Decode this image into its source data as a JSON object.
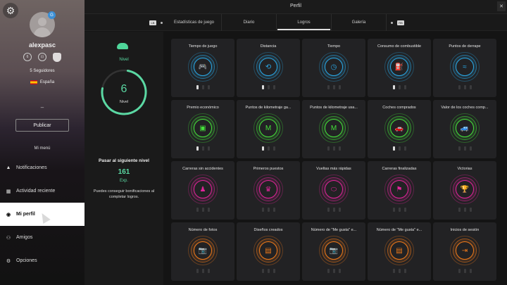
{
  "header": {
    "title": "Perfil",
    "close_label": "✕"
  },
  "tabs": {
    "left_icon": "LB",
    "right_icon": "RB",
    "items": [
      {
        "label": "Estadísticas de juego"
      },
      {
        "label": "Diario"
      },
      {
        "label": "Logros",
        "active": true
      },
      {
        "label": "Galería"
      }
    ]
  },
  "profile": {
    "username": "alexpasc",
    "badge": "G",
    "followers": "5 Seguidores",
    "country": "España",
    "dash": "–",
    "publish_label": "Publicar",
    "menu_title": "Mi menú",
    "mini_icons": [
      "6",
      "⊡",
      ""
    ]
  },
  "nav": {
    "items": [
      {
        "label": "Notificaciones",
        "icon": "bell-icon",
        "glyph": "🔔"
      },
      {
        "label": "Actividad reciente",
        "icon": "activity-icon",
        "glyph": "▦"
      },
      {
        "label": "Mi perfil",
        "icon": "profile-icon",
        "glyph": "◉",
        "active": true
      },
      {
        "label": "Amigos",
        "icon": "friends-icon",
        "glyph": "👥"
      },
      {
        "label": "Opciones",
        "icon": "options-icon",
        "glyph": "⚙"
      }
    ]
  },
  "level": {
    "top_label": "Nivel",
    "value": "6",
    "ring_label": "Nivel",
    "progress_pct": 75,
    "next_level_label": "Pasar al siguiente nivel",
    "exp_value": "161",
    "exp_label": "Exp.",
    "hint": "Puedes conseguir bonificaciones al completar logros.",
    "accent": "#5bd8a3"
  },
  "achievements": [
    {
      "title": "Tiempo de juego",
      "icon": "gamepad-icon",
      "glyph": "🎮",
      "color": "#2aa8e6",
      "stars": 1
    },
    {
      "title": "Distancia",
      "icon": "route-icon",
      "glyph": "⟲",
      "color": "#2aa8e6",
      "stars": 1
    },
    {
      "title": "Tiempo",
      "icon": "clock-road-icon",
      "glyph": "◷",
      "color": "#2aa8e6",
      "stars": 0
    },
    {
      "title": "Consumo de combustible",
      "icon": "fuel-icon",
      "glyph": "⛽",
      "color": "#2aa8e6",
      "stars": 1
    },
    {
      "title": "Puntos de derrape",
      "icon": "drift-icon",
      "glyph": "≈",
      "color": "#2aa8e6",
      "stars": 0
    },
    {
      "title": "Premio económico",
      "icon": "money-icon",
      "glyph": "▣",
      "color": "#45e03a",
      "stars": 1
    },
    {
      "title": "Puntos de kilometraje ga...",
      "icon": "mileage-icon",
      "glyph": "M",
      "color": "#45e03a",
      "stars": 1
    },
    {
      "title": "Puntos de kilometraje usa...",
      "icon": "mileage-used-icon",
      "glyph": "M",
      "color": "#45e03a",
      "stars": 0
    },
    {
      "title": "Coches comprados",
      "icon": "car-bought-icon",
      "glyph": "🚗",
      "color": "#45e03a",
      "stars": 1
    },
    {
      "title": "Valor de los coches comp...",
      "icon": "car-value-icon",
      "glyph": "🚙",
      "color": "#45e03a",
      "stars": 0
    },
    {
      "title": "Carreras sin accidentes",
      "icon": "driver-icon",
      "glyph": "♟",
      "color": "#e0249a",
      "stars": 0
    },
    {
      "title": "Primeros puestos",
      "icon": "podium-icon",
      "glyph": "♛",
      "color": "#e0249a",
      "stars": 0
    },
    {
      "title": "Vueltas más rápidas",
      "icon": "lap-icon",
      "glyph": "⬭",
      "color": "#e0249a",
      "stars": 0
    },
    {
      "title": "Carreras finalizadas",
      "icon": "finish-flag-icon",
      "glyph": "⚑",
      "color": "#e0249a",
      "stars": 0
    },
    {
      "title": "Victorias",
      "icon": "trophy-icon",
      "glyph": "🏆",
      "color": "#e0249a",
      "stars": 0
    },
    {
      "title": "Número de fotos",
      "icon": "camera-icon",
      "glyph": "📷",
      "color": "#f07a1a",
      "stars": 0
    },
    {
      "title": "Diseños creados",
      "icon": "livery-icon",
      "glyph": "▤",
      "color": "#f07a1a",
      "stars": 0
    },
    {
      "title": "Número de \"Me gusta\" e...",
      "icon": "camera-like-icon",
      "glyph": "📷",
      "color": "#f07a1a",
      "stars": 0
    },
    {
      "title": "Número de \"Me gusta\" e...",
      "icon": "livery-like-icon",
      "glyph": "▤",
      "color": "#f07a1a",
      "stars": 0
    },
    {
      "title": "Inicios de sesión",
      "icon": "login-icon",
      "glyph": "⇥",
      "color": "#f07a1a",
      "stars": 0
    }
  ]
}
